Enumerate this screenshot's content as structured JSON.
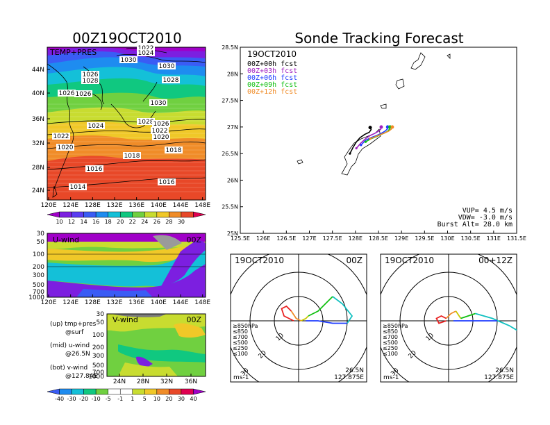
{
  "left_title": "00Z19OCT2010",
  "right_title": "Sonde Tracking Forecast",
  "chart_data": [
    {
      "id": "map_temp",
      "type": "heatmap",
      "panel_label": "TEMP+PRES",
      "xticks": [
        "120E",
        "124E",
        "128E",
        "132E",
        "136E",
        "140E",
        "144E",
        "148E"
      ],
      "yticks": [
        "24N",
        "28N",
        "32N",
        "36N",
        "40N",
        "44N"
      ],
      "contour_labels": [
        "1022",
        "1024",
        "1030",
        "1026",
        "1030",
        "1028",
        "1028",
        "1026",
        "1026",
        "1030",
        "1028",
        "1026",
        "1024",
        "1022",
        "1022",
        "1020",
        "1020",
        "1018",
        "1018",
        "1016",
        "1016",
        "1014"
      ],
      "colorbar": [
        "10",
        "12",
        "14",
        "16",
        "18",
        "20",
        "22",
        "24",
        "26",
        "28",
        "30"
      ],
      "colors": [
        "#a000c8",
        "#7c1fe0",
        "#5a3cf2",
        "#3a5cf5",
        "#1e8cf0",
        "#14c0d8",
        "#10c880",
        "#70d040",
        "#c8dc30",
        "#f0c828",
        "#f08c28",
        "#e84828",
        "#e00050"
      ]
    },
    {
      "id": "u_wind",
      "type": "heatmap",
      "panel_label": "U-wind",
      "time_label": "00Z",
      "xticks": [
        "120E",
        "124E",
        "128E",
        "132E",
        "136E",
        "140E",
        "144E",
        "148E"
      ],
      "yticks": [
        "30",
        "50",
        "100",
        "200",
        "300",
        "500",
        "700",
        "1000"
      ]
    },
    {
      "id": "v_wind",
      "type": "heatmap",
      "panel_label": "V-wind",
      "time_label": "00Z",
      "xticks": [
        "24N",
        "28N",
        "32N",
        "36N"
      ],
      "yticks": [
        "30",
        "50",
        "100",
        "200",
        "300",
        "500",
        "700",
        "1000"
      ],
      "colorbar": [
        "-40",
        "-30",
        "-20",
        "-10",
        "-5",
        "-1",
        "1",
        "5",
        "10",
        "20",
        "30",
        "40"
      ]
    },
    {
      "id": "track_map",
      "type": "line",
      "xlim": [
        125.5,
        131.5
      ],
      "ylim": [
        25,
        28.5
      ],
      "xticks": [
        "125.5E",
        "126E",
        "126.5E",
        "127E",
        "127.5E",
        "128E",
        "128.5E",
        "129E",
        "129.5E",
        "130E",
        "130.5E",
        "131E",
        "131.5E"
      ],
      "yticks": [
        "25N",
        "25.5N",
        "26N",
        "26.5N",
        "27N",
        "27.5N",
        "28N",
        "28.5N"
      ],
      "date": "19OCT2010",
      "legend": [
        {
          "name": "00Z+00h fcst",
          "color": "#000000"
        },
        {
          "name": "00Z+03h fcst",
          "color": "#a020c0"
        },
        {
          "name": "00Z+06h fcst",
          "color": "#1e3cff"
        },
        {
          "name": "00Z+09h fcst",
          "color": "#10c010"
        },
        {
          "name": "00Z+12h fcst",
          "color": "#f08c28"
        }
      ],
      "series": [
        {
          "name": "00Z+00h fcst",
          "color": "#000000",
          "x": [
            127.88,
            127.95,
            128.02,
            128.1,
            128.2,
            128.3,
            128.34,
            128.32
          ],
          "y": [
            26.5,
            26.62,
            26.72,
            26.8,
            26.86,
            26.9,
            26.95,
            26.99
          ]
        },
        {
          "name": "00Z+03h fcst",
          "color": "#a020c0",
          "x": [
            128.02,
            128.12,
            128.22,
            128.32,
            128.42,
            128.5,
            128.55,
            128.56
          ],
          "y": [
            26.6,
            26.7,
            26.78,
            26.84,
            26.88,
            26.92,
            26.96,
            27.0
          ]
        },
        {
          "name": "00Z+06h fcst",
          "color": "#1e3cff",
          "x": [
            128.12,
            128.22,
            128.34,
            128.46,
            128.56,
            128.64,
            128.69,
            128.7
          ],
          "y": [
            26.66,
            26.75,
            26.8,
            26.84,
            26.88,
            26.92,
            26.96,
            27.0
          ]
        },
        {
          "name": "00Z+09h fcst",
          "color": "#10c010",
          "x": [
            128.22,
            128.34,
            128.46,
            128.56,
            128.64,
            128.7,
            128.74,
            128.75
          ],
          "y": [
            26.72,
            26.78,
            26.82,
            26.86,
            26.89,
            26.92,
            26.96,
            27.0
          ]
        },
        {
          "name": "00Z+12h fcst",
          "color": "#f08c28",
          "x": [
            128.32,
            128.44,
            128.55,
            128.64,
            128.72,
            128.78,
            128.8
          ],
          "y": [
            26.78,
            26.82,
            26.86,
            26.89,
            26.92,
            26.96,
            27.0
          ]
        }
      ],
      "stats": [
        "VUP= 4.5 m/s",
        "VDW= -3.0 m/s",
        "Burst Alt= 28.0 km"
      ]
    },
    {
      "id": "hodograph_00",
      "type": "line",
      "date": "19OCT2010",
      "time_label": "00Z",
      "ring_labels": [
        "10",
        "20",
        "30",
        "40"
      ],
      "levels": [
        {
          "name": "≥850hPa",
          "color": "#e82020"
        },
        {
          "name": "≤850",
          "color": "#f08c28"
        },
        {
          "name": "≤700",
          "color": "#c8c800"
        },
        {
          "name": "≤500",
          "color": "#10c010"
        },
        {
          "name": "≤250",
          "color": "#10c0c0"
        },
        {
          "name": "≤100",
          "color": "#1e3cff"
        }
      ],
      "units": "ms-1",
      "location": [
        "26.5N",
        "127.875E"
      ],
      "series": [
        {
          "name": "≥850hPa",
          "color": "#e82020",
          "x": [
            -2,
            -6,
            -7,
            -5,
            -3
          ],
          "y": [
            0,
            2,
            5,
            6,
            4
          ]
        },
        {
          "name": "≤850",
          "color": "#f08c28",
          "x": [
            -3,
            -1,
            1
          ],
          "y": [
            4,
            1,
            0
          ]
        },
        {
          "name": "≤700",
          "color": "#c8c800",
          "x": [
            1,
            3,
            4
          ],
          "y": [
            0,
            1,
            2
          ]
        },
        {
          "name": "≤500",
          "color": "#10c010",
          "x": [
            4,
            8,
            12,
            14
          ],
          "y": [
            2,
            4,
            8,
            10
          ]
        },
        {
          "name": "≤250",
          "color": "#10c0c0",
          "x": [
            14,
            18,
            22,
            20
          ],
          "y": [
            10,
            7,
            2,
            -1
          ]
        },
        {
          "name": "≤100",
          "color": "#1e3cff",
          "x": [
            20,
            14,
            8,
            3
          ],
          "y": [
            -1,
            -1,
            0,
            0
          ]
        }
      ]
    },
    {
      "id": "hodograph_12",
      "type": "line",
      "date": "19OCT2010",
      "time_label": "00+12Z",
      "ring_labels": [
        "10",
        "20",
        "30",
        "40"
      ],
      "levels": [
        {
          "name": "≥850hPa",
          "color": "#e82020"
        },
        {
          "name": "≤850",
          "color": "#f08c28"
        },
        {
          "name": "≤700",
          "color": "#c8c800"
        },
        {
          "name": "≤500",
          "color": "#10c010"
        },
        {
          "name": "≤250",
          "color": "#10c0c0"
        },
        {
          "name": "≤100",
          "color": "#1e3cff"
        }
      ],
      "units": "ms-1",
      "location": [
        "26.5N",
        "127.875E"
      ],
      "series": [
        {
          "name": "≥850hPa",
          "color": "#e82020",
          "x": [
            -1,
            -4,
            -5,
            -3,
            -1
          ],
          "y": [
            0,
            -1,
            1,
            2,
            1
          ]
        },
        {
          "name": "≤850",
          "color": "#f08c28",
          "x": [
            -1,
            1,
            3
          ],
          "y": [
            1,
            3,
            4
          ]
        },
        {
          "name": "≤700",
          "color": "#c8c800",
          "x": [
            3,
            5
          ],
          "y": [
            4,
            1
          ]
        },
        {
          "name": "≤500",
          "color": "#10c010",
          "x": [
            5,
            8,
            11
          ],
          "y": [
            1,
            2,
            3
          ]
        },
        {
          "name": "≤250",
          "color": "#10c0c0",
          "x": [
            11,
            18,
            25,
            30
          ],
          "y": [
            3,
            1,
            -2,
            -5
          ]
        },
        {
          "name": "≤100",
          "color": "#1e3cff",
          "x": [
            20,
            12,
            6,
            2
          ],
          "y": [
            0,
            0,
            0,
            0
          ]
        }
      ]
    }
  ],
  "side_notes": [
    "(up) tmp+pres",
    "@surf",
    "(mid) u-wind",
    "@26.5N",
    "(bot) v-wind",
    "@127.84E"
  ]
}
